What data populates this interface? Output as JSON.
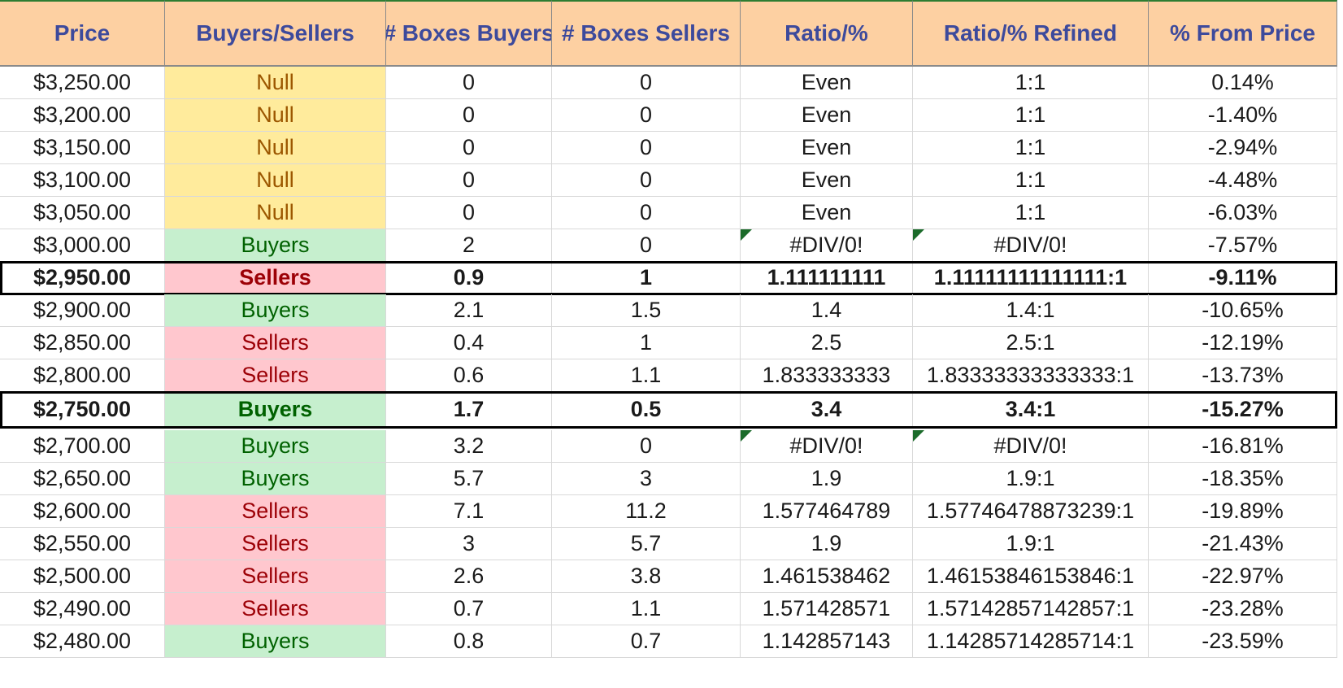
{
  "columns": [
    "Price",
    "Buyers/Sellers",
    "# Boxes Buyers",
    "# Boxes Sellers",
    "Ratio/%",
    "Ratio/% Refined",
    "% From Price"
  ],
  "colors": {
    "header_bg": "#fdd0a2",
    "header_text": "#3d4a9c",
    "null_bg": "#ffeb9c",
    "null_text": "#9c5700",
    "buyers_bg": "#c6efce",
    "buyers_text": "#006100",
    "sellers_bg": "#ffc7ce",
    "sellers_text": "#9c0006",
    "error_indicator": "#1b6b2a"
  },
  "rows": [
    {
      "price": "$3,250.00",
      "side": "Null",
      "boxes_buyers": "0",
      "boxes_sellers": "0",
      "ratio": "Even",
      "ratio_refined": "1:1",
      "from_price": "0.14%",
      "highlighted": false,
      "error": false
    },
    {
      "price": "$3,200.00",
      "side": "Null",
      "boxes_buyers": "0",
      "boxes_sellers": "0",
      "ratio": "Even",
      "ratio_refined": "1:1",
      "from_price": "-1.40%",
      "highlighted": false,
      "error": false
    },
    {
      "price": "$3,150.00",
      "side": "Null",
      "boxes_buyers": "0",
      "boxes_sellers": "0",
      "ratio": "Even",
      "ratio_refined": "1:1",
      "from_price": "-2.94%",
      "highlighted": false,
      "error": false
    },
    {
      "price": "$3,100.00",
      "side": "Null",
      "boxes_buyers": "0",
      "boxes_sellers": "0",
      "ratio": "Even",
      "ratio_refined": "1:1",
      "from_price": "-4.48%",
      "highlighted": false,
      "error": false
    },
    {
      "price": "$3,050.00",
      "side": "Null",
      "boxes_buyers": "0",
      "boxes_sellers": "0",
      "ratio": "Even",
      "ratio_refined": "1:1",
      "from_price": "-6.03%",
      "highlighted": false,
      "error": false
    },
    {
      "price": "$3,000.00",
      "side": "Buyers",
      "boxes_buyers": "2",
      "boxes_sellers": "0",
      "ratio": "#DIV/0!",
      "ratio_refined": "#DIV/0!",
      "from_price": "-7.57%",
      "highlighted": false,
      "error": true
    },
    {
      "price": "$2,950.00",
      "side": "Sellers",
      "boxes_buyers": "0.9",
      "boxes_sellers": "1",
      "ratio": "1.111111111",
      "ratio_refined": "1.11111111111111:1",
      "from_price": "-9.11%",
      "highlighted": true,
      "error": false
    },
    {
      "price": "$2,900.00",
      "side": "Buyers",
      "boxes_buyers": "2.1",
      "boxes_sellers": "1.5",
      "ratio": "1.4",
      "ratio_refined": "1.4:1",
      "from_price": "-10.65%",
      "highlighted": false,
      "error": false
    },
    {
      "price": "$2,850.00",
      "side": "Sellers",
      "boxes_buyers": "0.4",
      "boxes_sellers": "1",
      "ratio": "2.5",
      "ratio_refined": "2.5:1",
      "from_price": "-12.19%",
      "highlighted": false,
      "error": false
    },
    {
      "price": "$2,800.00",
      "side": "Sellers",
      "boxes_buyers": "0.6",
      "boxes_sellers": "1.1",
      "ratio": "1.833333333",
      "ratio_refined": "1.83333333333333:1",
      "from_price": "-13.73%",
      "highlighted": false,
      "error": false
    },
    {
      "price": "$2,750.00",
      "side": "Buyers",
      "boxes_buyers": "1.7",
      "boxes_sellers": "0.5",
      "ratio": "3.4",
      "ratio_refined": "3.4:1",
      "from_price": "-15.27%",
      "highlighted": true,
      "error": false
    },
    {
      "price": "$2,700.00",
      "side": "Buyers",
      "boxes_buyers": "3.2",
      "boxes_sellers": "0",
      "ratio": "#DIV/0!",
      "ratio_refined": "#DIV/0!",
      "from_price": "-16.81%",
      "highlighted": false,
      "error": true
    },
    {
      "price": "$2,650.00",
      "side": "Buyers",
      "boxes_buyers": "5.7",
      "boxes_sellers": "3",
      "ratio": "1.9",
      "ratio_refined": "1.9:1",
      "from_price": "-18.35%",
      "highlighted": false,
      "error": false
    },
    {
      "price": "$2,600.00",
      "side": "Sellers",
      "boxes_buyers": "7.1",
      "boxes_sellers": "11.2",
      "ratio": "1.577464789",
      "ratio_refined": "1.57746478873239:1",
      "from_price": "-19.89%",
      "highlighted": false,
      "error": false
    },
    {
      "price": "$2,550.00",
      "side": "Sellers",
      "boxes_buyers": "3",
      "boxes_sellers": "5.7",
      "ratio": "1.9",
      "ratio_refined": "1.9:1",
      "from_price": "-21.43%",
      "highlighted": false,
      "error": false
    },
    {
      "price": "$2,500.00",
      "side": "Sellers",
      "boxes_buyers": "2.6",
      "boxes_sellers": "3.8",
      "ratio": "1.461538462",
      "ratio_refined": "1.46153846153846:1",
      "from_price": "-22.97%",
      "highlighted": false,
      "error": false
    },
    {
      "price": "$2,490.00",
      "side": "Sellers",
      "boxes_buyers": "0.7",
      "boxes_sellers": "1.1",
      "ratio": "1.571428571",
      "ratio_refined": "1.57142857142857:1",
      "from_price": "-23.28%",
      "highlighted": false,
      "error": false
    },
    {
      "price": "$2,480.00",
      "side": "Buyers",
      "boxes_buyers": "0.8",
      "boxes_sellers": "0.7",
      "ratio": "1.142857143",
      "ratio_refined": "1.14285714285714:1",
      "from_price": "-23.59%",
      "highlighted": false,
      "error": false
    }
  ]
}
